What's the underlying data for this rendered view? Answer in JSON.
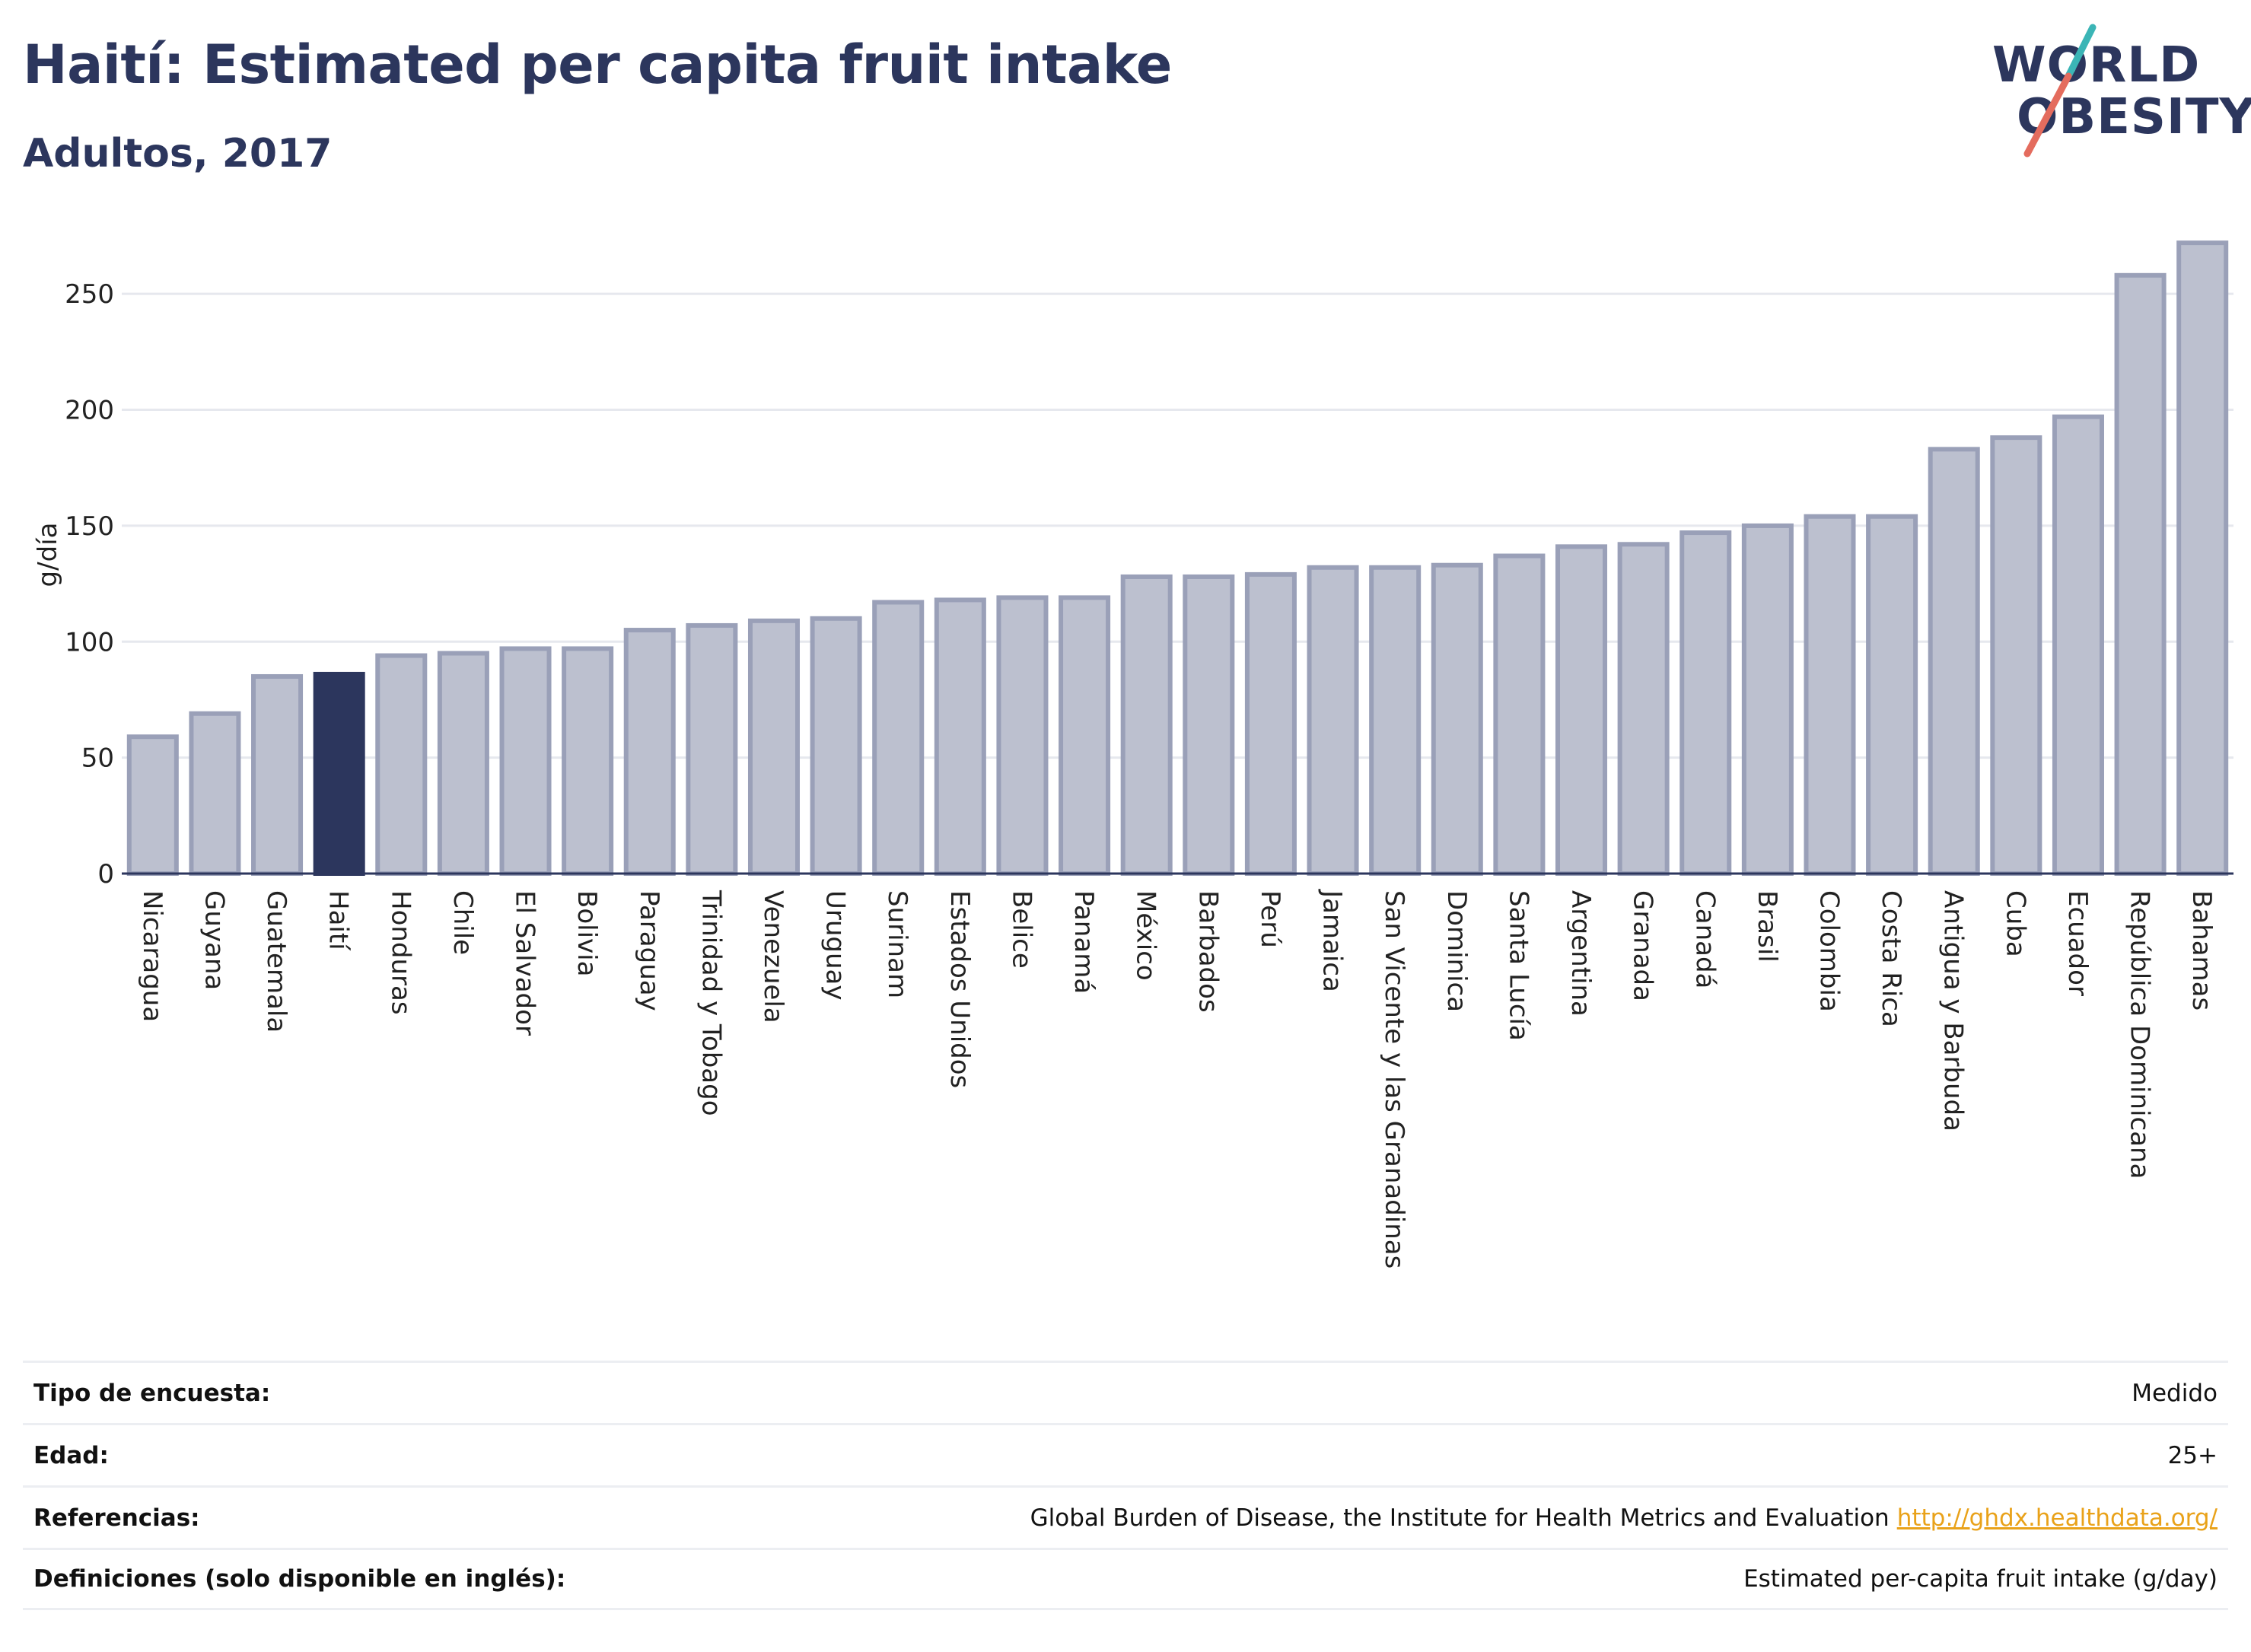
{
  "header": {
    "title": "Haití: Estimated per capita fruit intake",
    "subtitle": "Adultos, 2017"
  },
  "logo": {
    "line1": "WORLD",
    "line2": "OBESITY",
    "colors": {
      "text": "#2c365d",
      "teal": "#3bb5b6",
      "coral": "#e46c5e"
    }
  },
  "colors": {
    "bar": "#bcc0cf",
    "bar_stroke": "#9aa0b8",
    "highlight": "#2c365d",
    "grid": "#e6e8ee"
  },
  "chart_data": {
    "type": "bar",
    "ylabel": "g/día",
    "ylim": [
      0,
      275
    ],
    "yticks": [
      0,
      50,
      100,
      150,
      200,
      250
    ],
    "grid": true,
    "highlight_category": "Haití",
    "categories": [
      "Nicaragua",
      "Guyana",
      "Guatemala",
      "Haití",
      "Honduras",
      "Chile",
      "El Salvador",
      "Bolivia",
      "Paraguay",
      "Trinidad y Tobago",
      "Venezuela",
      "Uruguay",
      "Surinam",
      "Estados Unidos",
      "Belice",
      "Panamá",
      "México",
      "Barbados",
      "Perú",
      "Jamaica",
      "San Vicente y las Granadinas",
      "Dominica",
      "Santa Lucía",
      "Argentina",
      "Granada",
      "Canadá",
      "Brasil",
      "Colombia",
      "Costa Rica",
      "Antigua y Barbuda",
      "Cuba",
      "Ecuador",
      "República Dominicana",
      "Bahamas"
    ],
    "values": [
      59,
      69,
      85,
      86,
      94,
      95,
      97,
      97,
      105,
      107,
      109,
      110,
      117,
      118,
      119,
      119,
      128,
      128,
      129,
      132,
      132,
      133,
      137,
      141,
      142,
      147,
      150,
      154,
      154,
      183,
      188,
      197,
      258,
      272
    ]
  },
  "meta": [
    {
      "key": "Tipo de encuesta:",
      "value": "Medido"
    },
    {
      "key": "Edad:",
      "value": "25+"
    },
    {
      "key": "Referencias:",
      "value": "Global Burden of Disease, the Institute for Health Metrics and Evaluation",
      "link": "http://ghdx.healthdata.org/"
    },
    {
      "key": "Definiciones (solo disponible en inglés):",
      "value": "Estimated per-capita fruit intake (g/day)"
    }
  ]
}
